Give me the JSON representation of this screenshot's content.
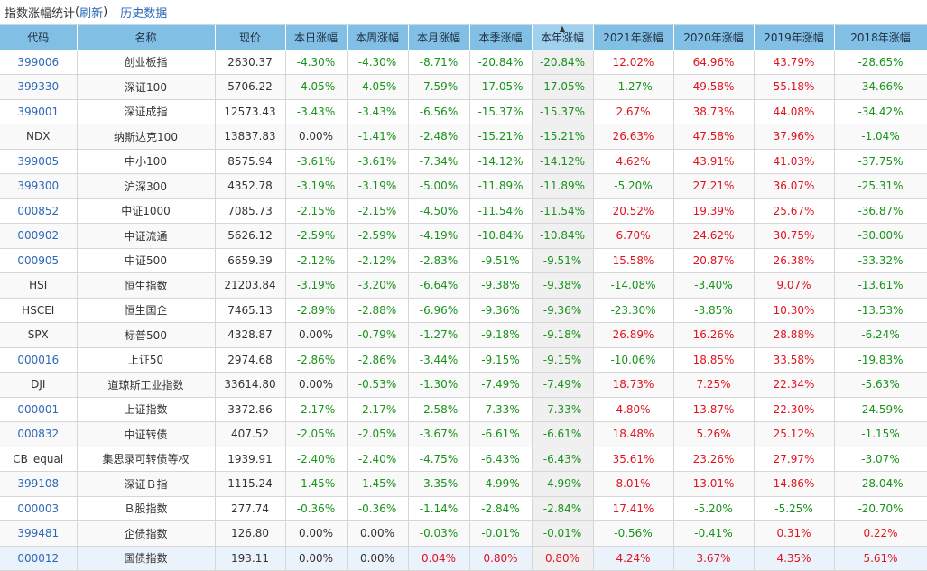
{
  "header": {
    "title": "指数涨幅统计",
    "refresh": "刷新",
    "history": "历史数据"
  },
  "colors": {
    "header_bg": "#82bfe5",
    "link": "#2d68b7",
    "negative": "#18931a",
    "positive": "#e0131e"
  },
  "table": {
    "columns": [
      "代码",
      "名称",
      "现价",
      "本日涨幅",
      "本周涨幅",
      "本月涨幅",
      "本季涨幅",
      "本年涨幅",
      "2021年涨幅",
      "2020年涨幅",
      "2019年涨幅",
      "2018年涨幅"
    ],
    "sorted_column": "本年涨幅",
    "sort_direction": "ascending",
    "rows": [
      [
        "399006",
        "创业板指",
        "2630.37",
        "-4.30%",
        "-4.30%",
        "-8.71%",
        "-20.84%",
        "-20.84%",
        "12.02%",
        "64.96%",
        "43.79%",
        "-28.65%"
      ],
      [
        "399330",
        "深证100",
        "5706.22",
        "-4.05%",
        "-4.05%",
        "-7.59%",
        "-17.05%",
        "-17.05%",
        "-1.27%",
        "49.58%",
        "55.18%",
        "-34.66%"
      ],
      [
        "399001",
        "深证成指",
        "12573.43",
        "-3.43%",
        "-3.43%",
        "-6.56%",
        "-15.37%",
        "-15.37%",
        "2.67%",
        "38.73%",
        "44.08%",
        "-34.42%"
      ],
      [
        "NDX",
        "纳斯达克100",
        "13837.83",
        "0.00%",
        "-1.41%",
        "-2.48%",
        "-15.21%",
        "-15.21%",
        "26.63%",
        "47.58%",
        "37.96%",
        "-1.04%"
      ],
      [
        "399005",
        "中小100",
        "8575.94",
        "-3.61%",
        "-3.61%",
        "-7.34%",
        "-14.12%",
        "-14.12%",
        "4.62%",
        "43.91%",
        "41.03%",
        "-37.75%"
      ],
      [
        "399300",
        "沪深300",
        "4352.78",
        "-3.19%",
        "-3.19%",
        "-5.00%",
        "-11.89%",
        "-11.89%",
        "-5.20%",
        "27.21%",
        "36.07%",
        "-25.31%"
      ],
      [
        "000852",
        "中证1000",
        "7085.73",
        "-2.15%",
        "-2.15%",
        "-4.50%",
        "-11.54%",
        "-11.54%",
        "20.52%",
        "19.39%",
        "25.67%",
        "-36.87%"
      ],
      [
        "000902",
        "中证流通",
        "5626.12",
        "-2.59%",
        "-2.59%",
        "-4.19%",
        "-10.84%",
        "-10.84%",
        "6.70%",
        "24.62%",
        "30.75%",
        "-30.00%"
      ],
      [
        "000905",
        "中证500",
        "6659.39",
        "-2.12%",
        "-2.12%",
        "-2.83%",
        "-9.51%",
        "-9.51%",
        "15.58%",
        "20.87%",
        "26.38%",
        "-33.32%"
      ],
      [
        "HSI",
        "恒生指数",
        "21203.84",
        "-3.19%",
        "-3.20%",
        "-6.64%",
        "-9.38%",
        "-9.38%",
        "-14.08%",
        "-3.40%",
        "9.07%",
        "-13.61%"
      ],
      [
        "HSCEI",
        "恒生国企",
        "7465.13",
        "-2.89%",
        "-2.88%",
        "-6.96%",
        "-9.36%",
        "-9.36%",
        "-23.30%",
        "-3.85%",
        "10.30%",
        "-13.53%"
      ],
      [
        "SPX",
        "标普500",
        "4328.87",
        "0.00%",
        "-0.79%",
        "-1.27%",
        "-9.18%",
        "-9.18%",
        "26.89%",
        "16.26%",
        "28.88%",
        "-6.24%"
      ],
      [
        "000016",
        "上证50",
        "2974.68",
        "-2.86%",
        "-2.86%",
        "-3.44%",
        "-9.15%",
        "-9.15%",
        "-10.06%",
        "18.85%",
        "33.58%",
        "-19.83%"
      ],
      [
        "DJI",
        "道琼斯工业指数",
        "33614.80",
        "0.00%",
        "-0.53%",
        "-1.30%",
        "-7.49%",
        "-7.49%",
        "18.73%",
        "7.25%",
        "22.34%",
        "-5.63%"
      ],
      [
        "000001",
        "上证指数",
        "3372.86",
        "-2.17%",
        "-2.17%",
        "-2.58%",
        "-7.33%",
        "-7.33%",
        "4.80%",
        "13.87%",
        "22.30%",
        "-24.59%"
      ],
      [
        "000832",
        "中证转债",
        "407.52",
        "-2.05%",
        "-2.05%",
        "-3.67%",
        "-6.61%",
        "-6.61%",
        "18.48%",
        "5.26%",
        "25.12%",
        "-1.15%"
      ],
      [
        "CB_equal",
        "集思录可转债等权",
        "1939.91",
        "-2.40%",
        "-2.40%",
        "-4.75%",
        "-6.43%",
        "-6.43%",
        "35.61%",
        "23.26%",
        "27.97%",
        "-3.07%"
      ],
      [
        "399108",
        "深证Ｂ指",
        "1115.24",
        "-1.45%",
        "-1.45%",
        "-3.35%",
        "-4.99%",
        "-4.99%",
        "8.01%",
        "13.01%",
        "14.86%",
        "-28.04%"
      ],
      [
        "000003",
        "Ｂ股指数",
        "277.74",
        "-0.36%",
        "-0.36%",
        "-1.14%",
        "-2.84%",
        "-2.84%",
        "17.41%",
        "-5.20%",
        "-5.25%",
        "-20.70%"
      ],
      [
        "399481",
        "企债指数",
        "126.80",
        "0.00%",
        "0.00%",
        "-0.03%",
        "-0.01%",
        "-0.01%",
        "-0.56%",
        "-0.41%",
        "0.31%",
        "0.22%"
      ],
      [
        "000012",
        "国债指数",
        "193.11",
        "0.00%",
        "0.00%",
        "0.04%",
        "0.80%",
        "0.80%",
        "4.24%",
        "3.67%",
        "4.35%",
        "5.61%"
      ]
    ]
  }
}
